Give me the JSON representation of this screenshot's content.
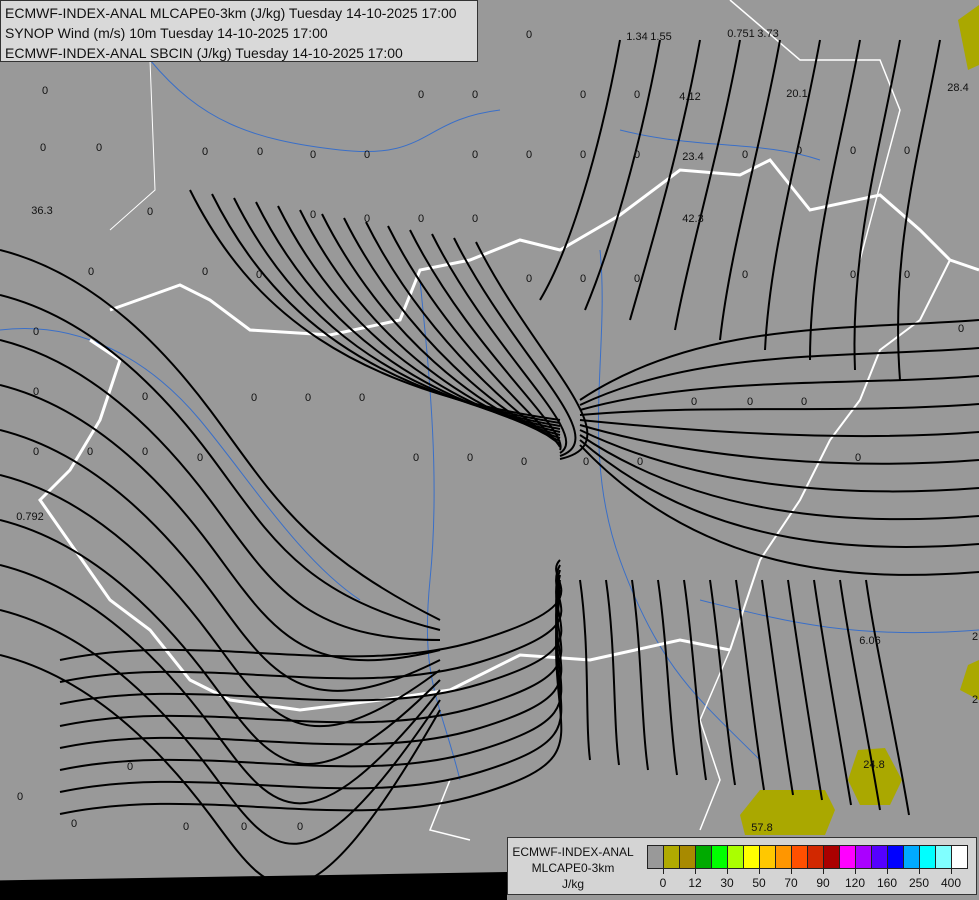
{
  "titles": [
    "ECMWF-INDEX-ANAL MLCAPE0-3km (J/kg) Tuesday 14-10-2025 17:00",
    "SYNOP Wind (m/s) 10m Tuesday 14-10-2025 17:00",
    "ECMWF-INDEX-ANAL SBCIN (J/kg) Tuesday 14-10-2025 17:00"
  ],
  "legend": {
    "line1": "ECMWF-INDEX-ANAL",
    "line2": "MLCAPE0-3km",
    "unit": "J/kg",
    "colors": [
      "#999999",
      "#b0aa00",
      "#a88a00",
      "#00aa00",
      "#00ff00",
      "#aaff00",
      "#ffff00",
      "#ffc800",
      "#ff9600",
      "#ff5000",
      "#d22800",
      "#aa0000",
      "#ff00ff",
      "#aa00ff",
      "#5500ff",
      "#0000ff",
      "#00aaff",
      "#00ffff",
      "#80ffff",
      "#ffffff"
    ],
    "ticks": [
      "0",
      "12",
      "30",
      "50",
      "70",
      "90",
      "120",
      "160",
      "250",
      "400"
    ]
  },
  "colors": {
    "background": "#999999",
    "cape_fill": "#aaa800",
    "border": "#ffffff",
    "river": "#3a6fc8",
    "streamline": "#000000"
  },
  "values": [
    "1.34",
    "1.55",
    "0.751",
    "3.73",
    "4.12",
    "20.1",
    "28.4",
    "23.4",
    "42.3",
    "36.3",
    "0.792",
    "6.06",
    "24.8",
    "57.8",
    "2",
    "2",
    "0",
    "0",
    "0",
    "0",
    "0",
    "0",
    "0",
    "0",
    "0",
    "0",
    "0",
    "0",
    "0",
    "0",
    "0",
    "0",
    "0",
    "0",
    "0",
    "0",
    "0",
    "0",
    "0",
    "0",
    "0",
    "0",
    "0",
    "0",
    "0",
    "0",
    "0",
    "0",
    "0",
    "0",
    "0",
    "0",
    "0",
    "0",
    "0",
    "0",
    "0",
    "0",
    "0",
    "0",
    "0",
    "0",
    "0",
    "0",
    "0",
    "0",
    "0",
    "0",
    "0",
    "0",
    "0",
    "0",
    "0",
    "0",
    "0",
    "0"
  ]
}
